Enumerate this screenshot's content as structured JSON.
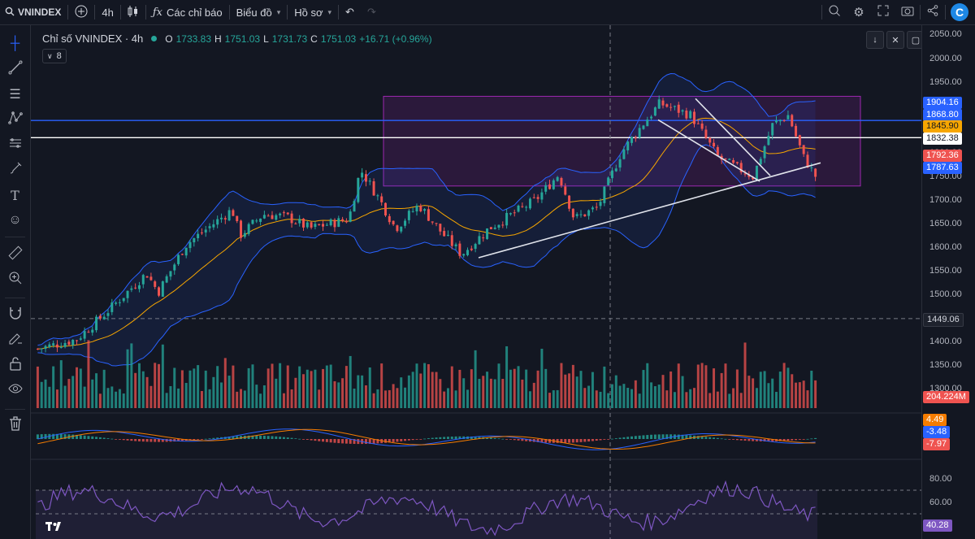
{
  "toolbar": {
    "symbol": "VNINDEX",
    "interval": "4h",
    "indicators_label": "Các chỉ báo",
    "chart_label": "Biểu đồ",
    "profile_label": "Hồ sơ"
  },
  "legend": {
    "title": "Chỉ số VNINDEX · 4h",
    "o_key": "O",
    "o_val": "1733.83",
    "h_key": "H",
    "h_val": "1751.03",
    "l_key": "L",
    "l_val": "1731.73",
    "c_key": "C",
    "c_val": "1751.03",
    "change": "+16.71 (+0.96%)",
    "collapsed_count": "8"
  },
  "price_scale": {
    "labels": [
      "2050.00",
      "2000.00",
      "1950.00",
      "1900.00",
      "1850.00",
      "1800.00",
      "1750.00",
      "1700.00",
      "1650.00",
      "1600.00",
      "1550.00",
      "1500.00",
      "1400.00",
      "1350.00",
      "1300.00"
    ],
    "tags": [
      {
        "text": "1904.16",
        "bg": "#2962ff",
        "fg": "#ffffff"
      },
      {
        "text": "1868.80",
        "bg": "#2962ff",
        "fg": "#ffffff"
      },
      {
        "text": "1845.90",
        "bg": "#f7a600",
        "fg": "#131722"
      },
      {
        "text": "1832.38",
        "bg": "#ffffff",
        "fg": "#131722"
      },
      {
        "text": "1792.36",
        "bg": "#ef5350",
        "fg": "#ffffff"
      },
      {
        "text": "1787.63",
        "bg": "#2962ff",
        "fg": "#ffffff"
      },
      {
        "text": "1449.06",
        "bg": "#1e222d",
        "fg": "#d1d4dc"
      },
      {
        "text": "204.224M",
        "bg": "#ef5350",
        "fg": "#ffffff"
      }
    ]
  },
  "macd": {
    "tags": [
      {
        "text": "4.49",
        "bg": "#f57c00",
        "fg": "#ffffff"
      },
      {
        "text": "-3.48",
        "bg": "#2962ff",
        "fg": "#ffffff"
      },
      {
        "text": "-7.97",
        "bg": "#ef5350",
        "fg": "#ffffff"
      }
    ]
  },
  "rsi": {
    "labels": [
      "80.00",
      "60.00"
    ],
    "tag": {
      "text": "40.28",
      "bg": "#7e57c2",
      "fg": "#ffffff"
    }
  },
  "colors": {
    "up": "#26a69a",
    "down": "#ef5350",
    "bb": "#2962ff",
    "ma": "#f7a600",
    "box": "#9c27b0",
    "rsi": "#7e57c2"
  },
  "chart_data": {
    "type": "candlestick",
    "symbol": "VNINDEX",
    "interval": "4h",
    "ylim": [
      1250,
      2060
    ],
    "ohlc_last": {
      "open": 1733.83,
      "high": 1751.03,
      "low": 1731.73,
      "close": 1751.03,
      "change": 16.71,
      "change_pct": 0.96
    },
    "path_keypoints": [
      {
        "t": 0.0,
        "v": 1385
      },
      {
        "t": 0.05,
        "v": 1405
      },
      {
        "t": 0.09,
        "v": 1465
      },
      {
        "t": 0.14,
        "v": 1545
      },
      {
        "t": 0.155,
        "v": 1505
      },
      {
        "t": 0.19,
        "v": 1605
      },
      {
        "t": 0.25,
        "v": 1680
      },
      {
        "t": 0.26,
        "v": 1625
      },
      {
        "t": 0.29,
        "v": 1670
      },
      {
        "t": 0.32,
        "v": 1665
      },
      {
        "t": 0.35,
        "v": 1640
      },
      {
        "t": 0.4,
        "v": 1660
      },
      {
        "t": 0.415,
        "v": 1765
      },
      {
        "t": 0.44,
        "v": 1700
      },
      {
        "t": 0.46,
        "v": 1640
      },
      {
        "t": 0.49,
        "v": 1690
      },
      {
        "t": 0.52,
        "v": 1630
      },
      {
        "t": 0.545,
        "v": 1585
      },
      {
        "t": 0.58,
        "v": 1640
      },
      {
        "t": 0.64,
        "v": 1700
      },
      {
        "t": 0.67,
        "v": 1755
      },
      {
        "t": 0.69,
        "v": 1660
      },
      {
        "t": 0.72,
        "v": 1685
      },
      {
        "t": 0.75,
        "v": 1800
      },
      {
        "t": 0.78,
        "v": 1865
      },
      {
        "t": 0.8,
        "v": 1905
      },
      {
        "t": 0.84,
        "v": 1880
      },
      {
        "t": 0.875,
        "v": 1790
      },
      {
        "t": 0.92,
        "v": 1750
      },
      {
        "t": 0.945,
        "v": 1860
      },
      {
        "t": 0.965,
        "v": 1880
      },
      {
        "t": 0.985,
        "v": 1790
      },
      {
        "t": 1.0,
        "v": 1751
      }
    ],
    "horizontal_levels": [
      {
        "value": 1868.8,
        "color": "#2962ff"
      },
      {
        "value": 1832.38,
        "color": "#ffffff"
      },
      {
        "value": 1449.06,
        "color": "#787b86",
        "style": "dashed"
      }
    ],
    "range_box": {
      "from_value": 1730,
      "to_value": 1920
    },
    "volume_last": "204.224M",
    "macd_last": {
      "histogram": 4.49,
      "macd": -3.48,
      "signal": -7.97
    },
    "rsi_last": 40.28,
    "rsi_levels": [
      70,
      50
    ]
  }
}
